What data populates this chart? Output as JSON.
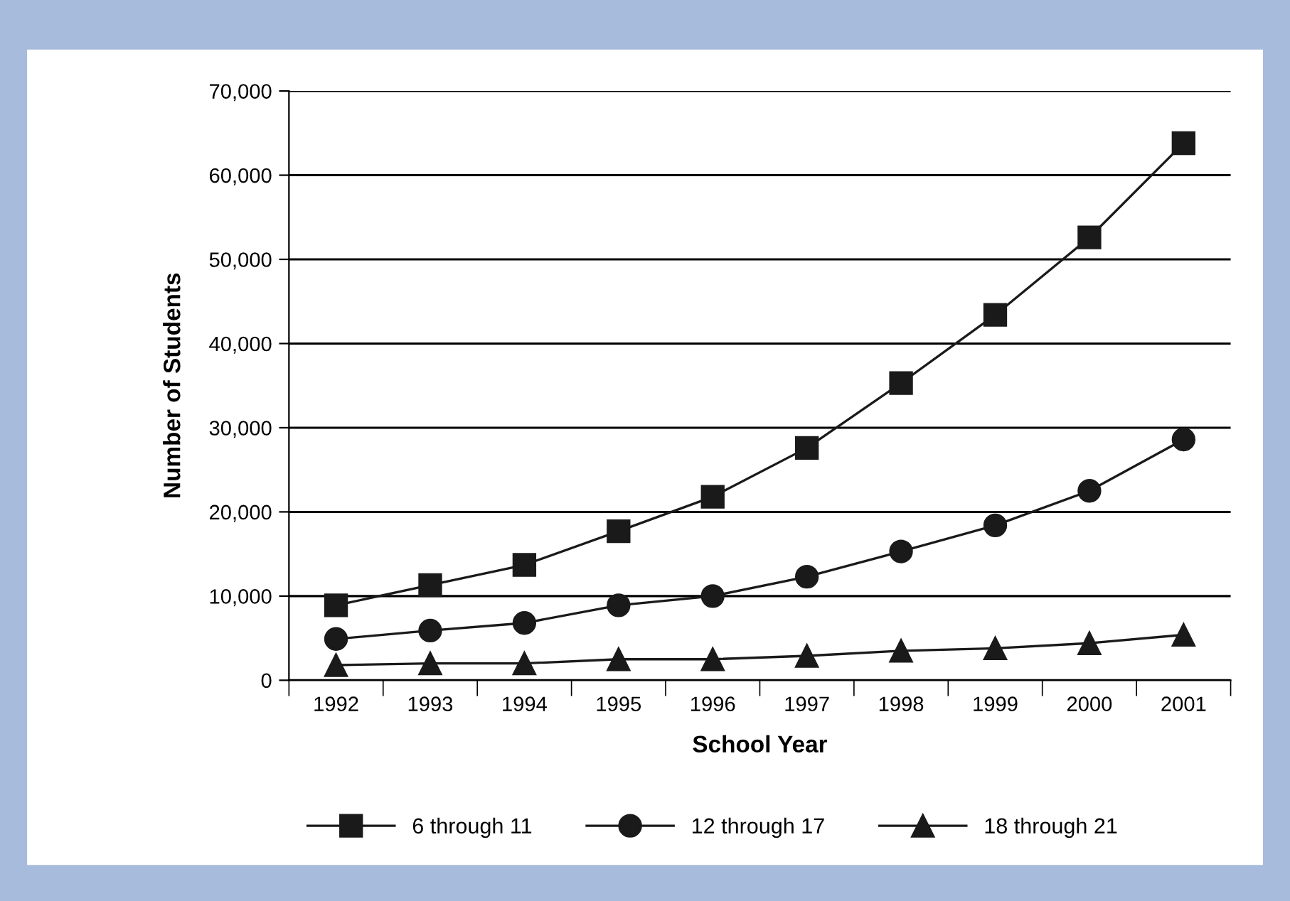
{
  "chart_data": {
    "type": "line",
    "xlabel": "School Year",
    "ylabel": "Number of Students",
    "categories": [
      "1992",
      "1993",
      "1994",
      "1995",
      "1996",
      "1997",
      "1998",
      "1999",
      "2000",
      "2001"
    ],
    "series": [
      {
        "name": "6 through 11",
        "color": "#1a1a1a",
        "marker": "square",
        "values": [
          8900,
          11300,
          13700,
          17700,
          21800,
          27600,
          35300,
          43400,
          52600,
          63800
        ]
      },
      {
        "name": "12 through 17",
        "color": "#1a1a1a",
        "marker": "circle",
        "values": [
          4900,
          5900,
          6800,
          8900,
          10000,
          12300,
          15300,
          18400,
          22500,
          28600
        ]
      },
      {
        "name": "18 through 21",
        "color": "#1a1a1a",
        "marker": "triangle",
        "values": [
          1800,
          2000,
          2000,
          2500,
          2500,
          2900,
          3500,
          3800,
          4400,
          5400
        ]
      }
    ],
    "ylim": [
      0,
      70000
    ],
    "yticks": [
      {
        "value": 0,
        "label": "0"
      },
      {
        "value": 10000,
        "label": "10,000"
      },
      {
        "value": 20000,
        "label": "20,000"
      },
      {
        "value": 30000,
        "label": "30,000"
      },
      {
        "value": 40000,
        "label": "40,000"
      },
      {
        "value": 50000,
        "label": "50,000"
      },
      {
        "value": 60000,
        "label": "60,000"
      },
      {
        "value": 70000,
        "label": "70,000"
      }
    ],
    "grid": "y",
    "legend": "bottom",
    "line_style": "solid"
  }
}
